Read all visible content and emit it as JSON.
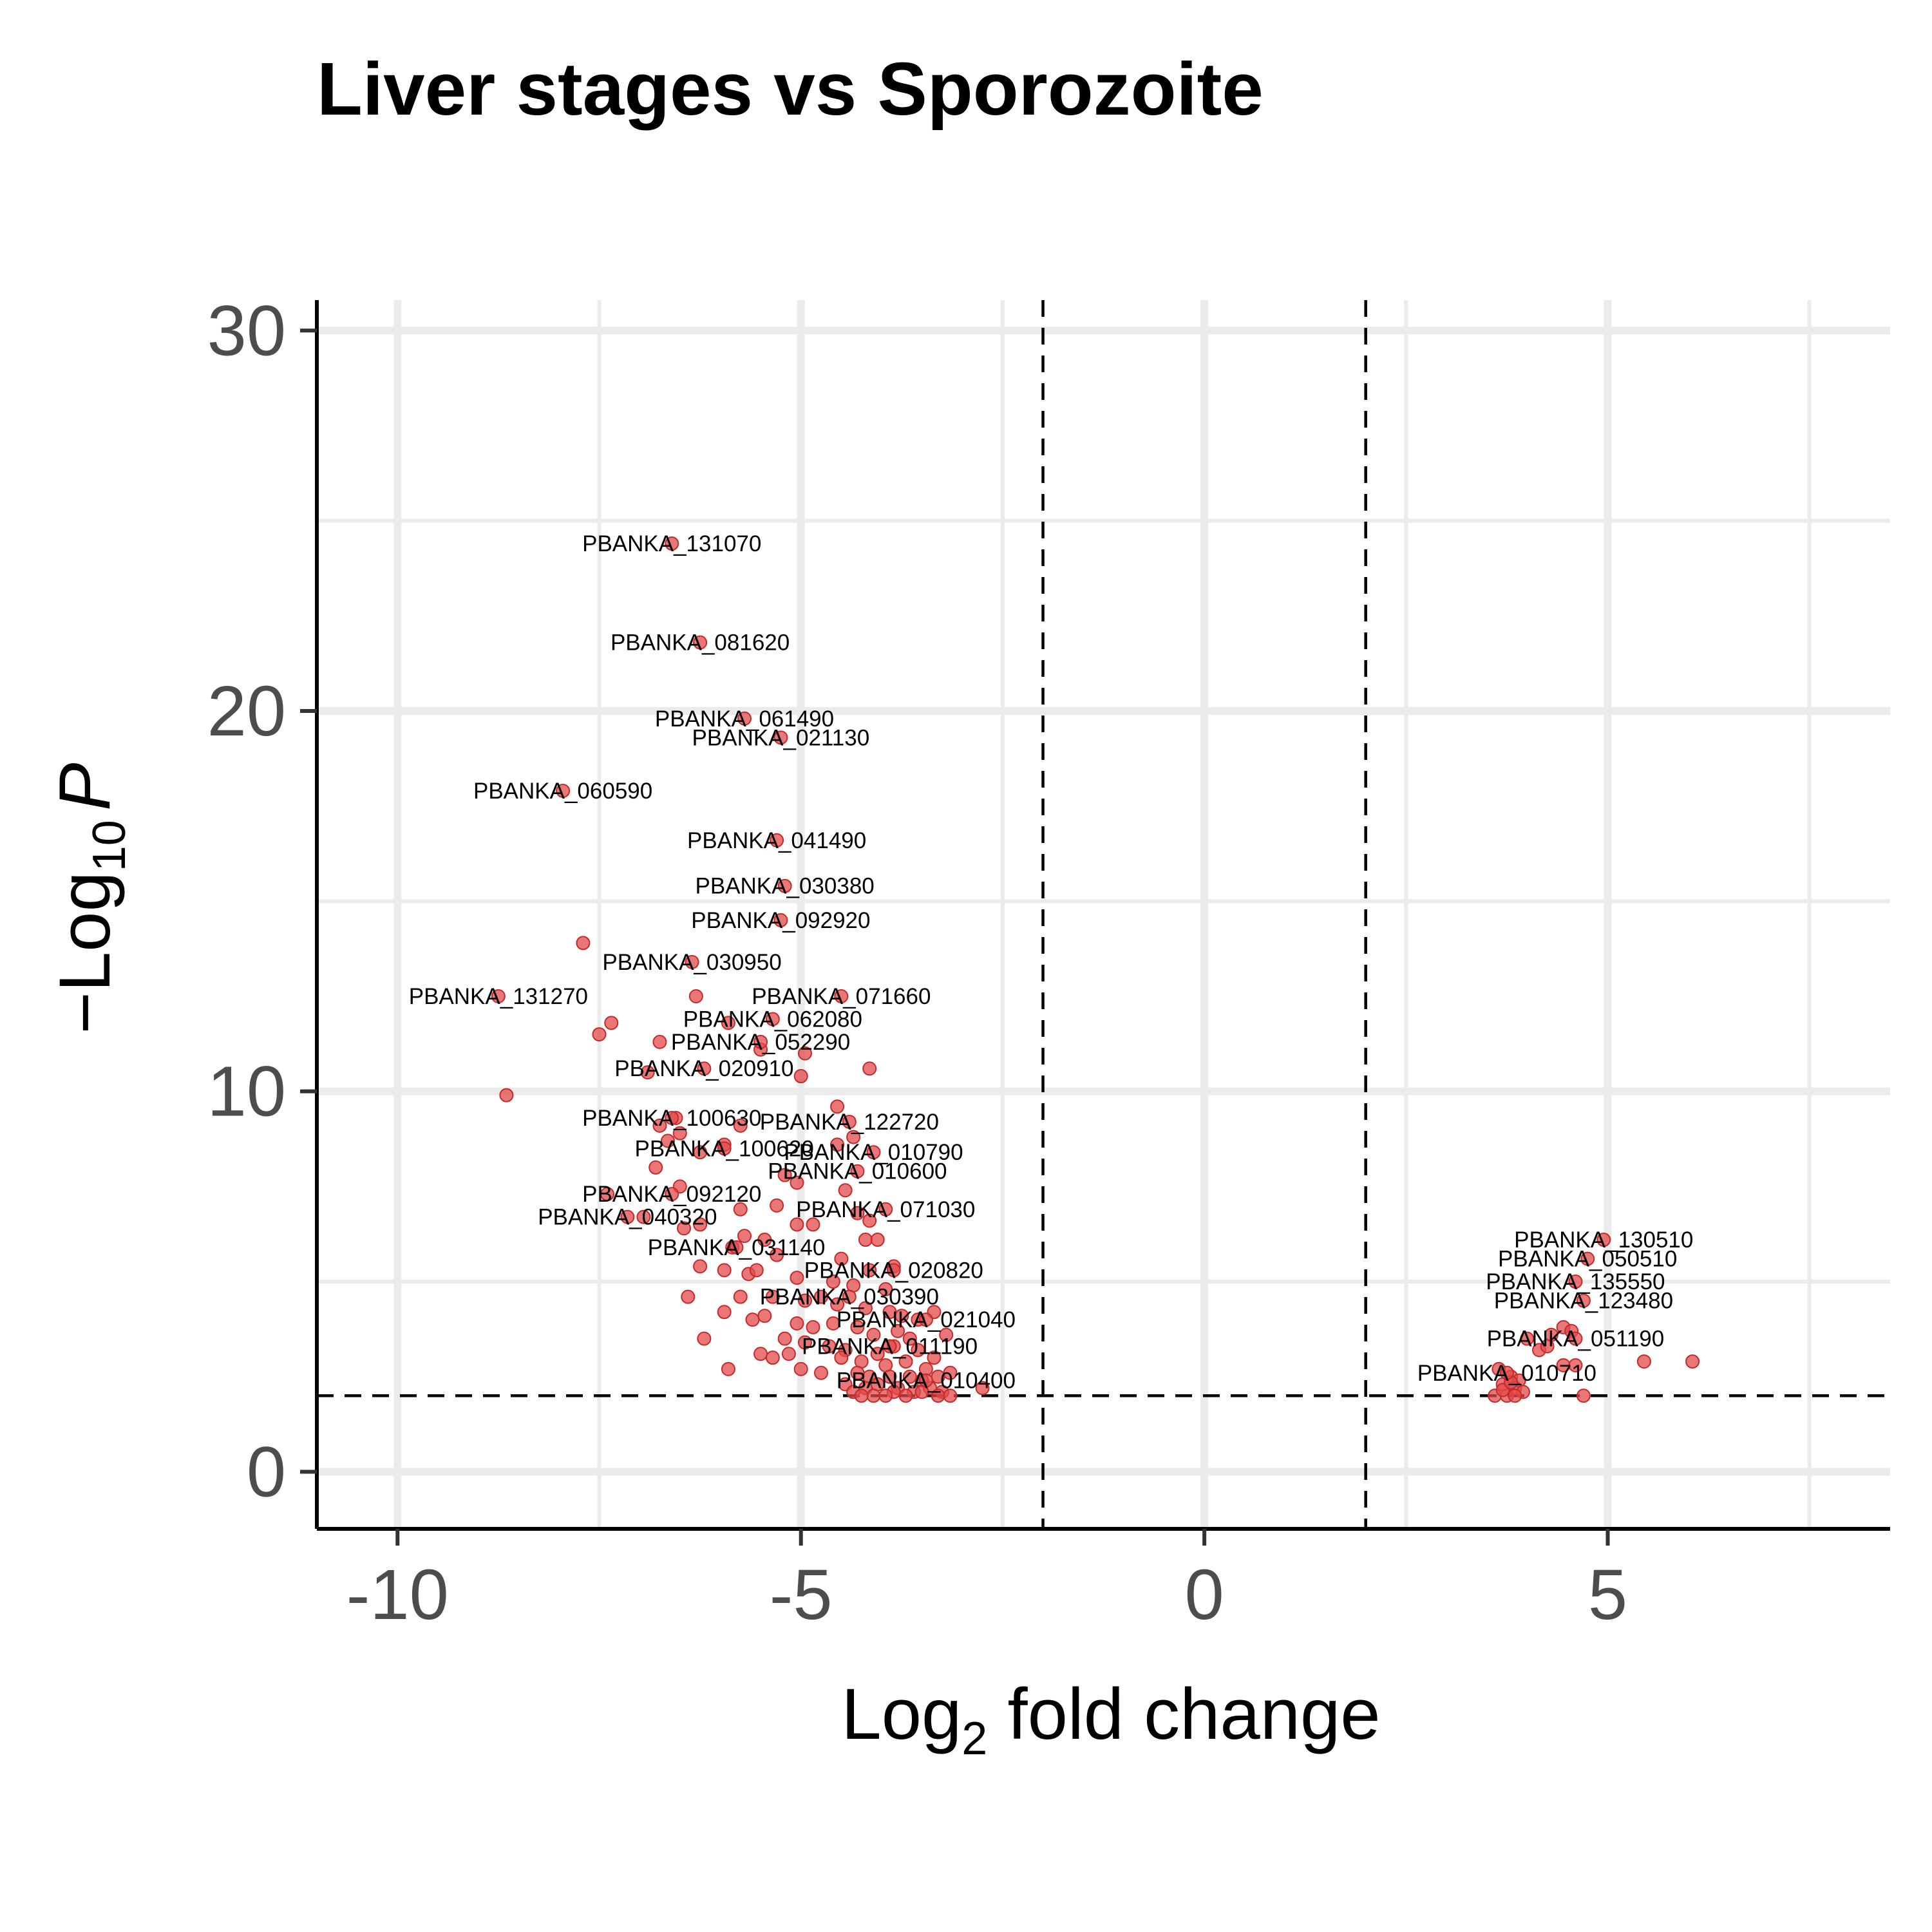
{
  "chart_data": {
    "type": "scatter",
    "title": "Liver stages vs Sporozoite",
    "xlabel": {
      "prefix": "Log",
      "subscript": "2",
      "suffix": " fold change"
    },
    "ylabel": {
      "prefix": "−Log",
      "subscript": "10",
      "suffix": "P"
    },
    "xlim": [
      -11.0,
      8.5
    ],
    "ylim": [
      -1.5,
      30.8
    ],
    "x_ticks": [
      -10,
      -5,
      0,
      5
    ],
    "x_tick_labels": [
      "-10",
      "-5",
      "0",
      "5"
    ],
    "y_ticks": [
      0,
      10,
      20,
      30
    ],
    "y_tick_labels": [
      "0",
      "10",
      "20",
      "30"
    ],
    "grid": true,
    "fc_cutoffs": [
      -2,
      2
    ],
    "p_cutoff": 2,
    "point_color": "#e34a4a",
    "labeled_points": [
      {
        "x": -6.6,
        "y": 24.4,
        "label": "PBANKA_131070"
      },
      {
        "x": -6.25,
        "y": 21.8,
        "label": "PBANKA_081620"
      },
      {
        "x": -5.7,
        "y": 19.8,
        "label": "PBANKA_061490"
      },
      {
        "x": -5.25,
        "y": 19.3,
        "label": "PBANKA_021130"
      },
      {
        "x": -7.95,
        "y": 17.9,
        "label": "PBANKA_060590"
      },
      {
        "x": -5.3,
        "y": 16.6,
        "label": "PBANKA_041490"
      },
      {
        "x": -5.2,
        "y": 15.4,
        "label": "PBANKA_030380"
      },
      {
        "x": -5.25,
        "y": 14.5,
        "label": "PBANKA_092920"
      },
      {
        "x": -6.35,
        "y": 13.4,
        "label": "PBANKA_030950"
      },
      {
        "x": -8.75,
        "y": 12.5,
        "label": "PBANKA_131270"
      },
      {
        "x": -4.5,
        "y": 12.5,
        "label": "PBANKA_071660"
      },
      {
        "x": -5.35,
        "y": 11.9,
        "label": "PBANKA_062080"
      },
      {
        "x": -5.5,
        "y": 11.3,
        "label": "PBANKA_052290"
      },
      {
        "x": -6.2,
        "y": 10.6,
        "label": "PBANKA_020910"
      },
      {
        "x": -6.6,
        "y": 9.3,
        "label": "PBANKA_100630"
      },
      {
        "x": -4.4,
        "y": 9.2,
        "label": "PBANKA_122720"
      },
      {
        "x": -5.95,
        "y": 8.5,
        "label": "PBANKA_100620"
      },
      {
        "x": -4.1,
        "y": 8.4,
        "label": "PBANKA_010790"
      },
      {
        "x": -4.3,
        "y": 7.9,
        "label": "PBANKA_010600"
      },
      {
        "x": -6.6,
        "y": 7.3,
        "label": "PBANKA_092120"
      },
      {
        "x": -3.95,
        "y": 6.9,
        "label": "PBANKA_071030"
      },
      {
        "x": -7.15,
        "y": 6.7,
        "label": "PBANKA_040320"
      },
      {
        "x": -5.8,
        "y": 5.9,
        "label": "PBANKA_031140"
      },
      {
        "x": -3.85,
        "y": 5.3,
        "label": "PBANKA_020820"
      },
      {
        "x": -4.4,
        "y": 4.6,
        "label": "PBANKA_030390"
      },
      {
        "x": -3.45,
        "y": 4.0,
        "label": "PBANKA_021040"
      },
      {
        "x": -3.9,
        "y": 3.3,
        "label": "PBANKA_011190"
      },
      {
        "x": -3.45,
        "y": 2.4,
        "label": "PBANKA_010400"
      },
      {
        "x": 4.95,
        "y": 6.1,
        "label": "PBANKA_130510"
      },
      {
        "x": 4.75,
        "y": 5.6,
        "label": "PBANKA_050510"
      },
      {
        "x": 4.6,
        "y": 5.0,
        "label": "PBANKA_135550"
      },
      {
        "x": 4.7,
        "y": 4.5,
        "label": "PBANKA_123480"
      },
      {
        "x": 4.6,
        "y": 3.5,
        "label": "PBANKA_051190"
      },
      {
        "x": 3.75,
        "y": 2.6,
        "label": "PBANKA_010710"
      }
    ],
    "unlabeled_points": [
      [
        -7.7,
        13.9
      ],
      [
        -7.35,
        11.8
      ],
      [
        -7.5,
        11.5
      ],
      [
        -8.65,
        9.9
      ],
      [
        -6.75,
        11.3
      ],
      [
        -6.3,
        12.5
      ],
      [
        -5.9,
        11.8
      ],
      [
        -5.5,
        11.1
      ],
      [
        -4.95,
        11.0
      ],
      [
        -4.15,
        10.6
      ],
      [
        -5.0,
        10.4
      ],
      [
        -6.9,
        10.5
      ],
      [
        -4.55,
        9.6
      ],
      [
        -6.55,
        9.3
      ],
      [
        -6.75,
        9.1
      ],
      [
        -6.5,
        8.9
      ],
      [
        -5.75,
        9.1
      ],
      [
        -6.65,
        8.7
      ],
      [
        -6.25,
        8.4
      ],
      [
        -5.95,
        8.6
      ],
      [
        -4.35,
        8.8
      ],
      [
        -4.55,
        8.6
      ],
      [
        -6.8,
        8.0
      ],
      [
        -5.2,
        7.8
      ],
      [
        -5.05,
        7.6
      ],
      [
        -4.45,
        7.4
      ],
      [
        -7.4,
        7.3
      ],
      [
        -6.5,
        7.5
      ],
      [
        -5.3,
        7.0
      ],
      [
        -5.75,
        6.9
      ],
      [
        -4.3,
        6.8
      ],
      [
        -4.15,
        6.6
      ],
      [
        -6.95,
        6.7
      ],
      [
        -6.25,
        6.5
      ],
      [
        -6.45,
        6.4
      ],
      [
        -5.05,
        6.5
      ],
      [
        -4.85,
        6.5
      ],
      [
        -5.7,
        6.2
      ],
      [
        -5.45,
        6.1
      ],
      [
        -4.2,
        6.1
      ],
      [
        -4.05,
        6.1
      ],
      [
        -5.85,
        5.9
      ],
      [
        -5.3,
        5.7
      ],
      [
        -4.5,
        5.6
      ],
      [
        -4.15,
        5.3
      ],
      [
        -3.85,
        5.4
      ],
      [
        -6.25,
        5.4
      ],
      [
        -5.95,
        5.3
      ],
      [
        -5.65,
        5.2
      ],
      [
        -5.55,
        5.3
      ],
      [
        -5.05,
        5.1
      ],
      [
        -4.6,
        5.0
      ],
      [
        -4.35,
        4.9
      ],
      [
        -3.95,
        4.8
      ],
      [
        -6.4,
        4.6
      ],
      [
        -5.75,
        4.6
      ],
      [
        -5.35,
        4.6
      ],
      [
        -4.95,
        4.5
      ],
      [
        -4.75,
        4.6
      ],
      [
        -4.55,
        4.4
      ],
      [
        -4.2,
        4.3
      ],
      [
        -3.9,
        4.2
      ],
      [
        -3.75,
        4.1
      ],
      [
        -3.55,
        4.0
      ],
      [
        -3.35,
        4.2
      ],
      [
        -5.95,
        4.2
      ],
      [
        -5.6,
        4.0
      ],
      [
        -5.45,
        4.1
      ],
      [
        -5.05,
        3.9
      ],
      [
        -4.85,
        3.8
      ],
      [
        -4.6,
        3.9
      ],
      [
        -4.3,
        3.8
      ],
      [
        -4.1,
        3.6
      ],
      [
        -3.8,
        3.7
      ],
      [
        -3.65,
        3.5
      ],
      [
        -3.2,
        3.6
      ],
      [
        -6.2,
        3.5
      ],
      [
        -5.2,
        3.5
      ],
      [
        -4.95,
        3.4
      ],
      [
        -4.65,
        3.3
      ],
      [
        -4.45,
        3.2
      ],
      [
        -4.05,
        3.1
      ],
      [
        -3.85,
        3.3
      ],
      [
        -3.55,
        3.2
      ],
      [
        -3.35,
        3.0
      ],
      [
        -5.5,
        3.1
      ],
      [
        -5.35,
        3.0
      ],
      [
        -5.15,
        3.1
      ],
      [
        -4.5,
        3.0
      ],
      [
        -4.25,
        2.9
      ],
      [
        -3.95,
        2.8
      ],
      [
        -3.7,
        2.9
      ],
      [
        -3.45,
        2.7
      ],
      [
        -5.9,
        2.7
      ],
      [
        -5.0,
        2.7
      ],
      [
        -4.75,
        2.6
      ],
      [
        -4.3,
        2.6
      ],
      [
        -4.15,
        2.5
      ],
      [
        -3.9,
        2.5
      ],
      [
        -3.65,
        2.5
      ],
      [
        -3.5,
        2.4
      ],
      [
        -3.3,
        2.5
      ],
      [
        -3.15,
        2.6
      ],
      [
        -4.45,
        2.3
      ],
      [
        -4.2,
        2.2
      ],
      [
        -4.05,
        2.3
      ],
      [
        -3.8,
        2.2
      ],
      [
        -3.6,
        2.1
      ],
      [
        -3.4,
        2.2
      ],
      [
        -3.25,
        2.1
      ],
      [
        -2.75,
        2.2
      ],
      [
        -4.35,
        2.1
      ],
      [
        -4.1,
        2.0
      ],
      [
        -3.85,
        2.1
      ],
      [
        -3.7,
        2.0
      ],
      [
        -3.5,
        2.1
      ],
      [
        -3.3,
        2.0
      ],
      [
        -3.15,
        2.0
      ],
      [
        -4.25,
        2.0
      ],
      [
        -3.95,
        2.0
      ],
      [
        4.0,
        3.5
      ],
      [
        4.3,
        3.6
      ],
      [
        4.45,
        3.8
      ],
      [
        4.55,
        3.7
      ],
      [
        4.15,
        3.2
      ],
      [
        4.25,
        3.3
      ],
      [
        4.45,
        2.8
      ],
      [
        4.6,
        2.8
      ],
      [
        5.45,
        2.9
      ],
      [
        6.05,
        2.9
      ],
      [
        3.65,
        2.7
      ],
      [
        3.8,
        2.5
      ],
      [
        3.9,
        2.4
      ],
      [
        3.7,
        2.3
      ],
      [
        3.85,
        2.2
      ],
      [
        3.95,
        2.1
      ],
      [
        3.6,
        2.0
      ],
      [
        3.75,
        2.0
      ],
      [
        3.85,
        2.0
      ],
      [
        4.7,
        2.0
      ],
      [
        3.7,
        2.15
      ],
      [
        3.8,
        2.35
      ]
    ]
  }
}
